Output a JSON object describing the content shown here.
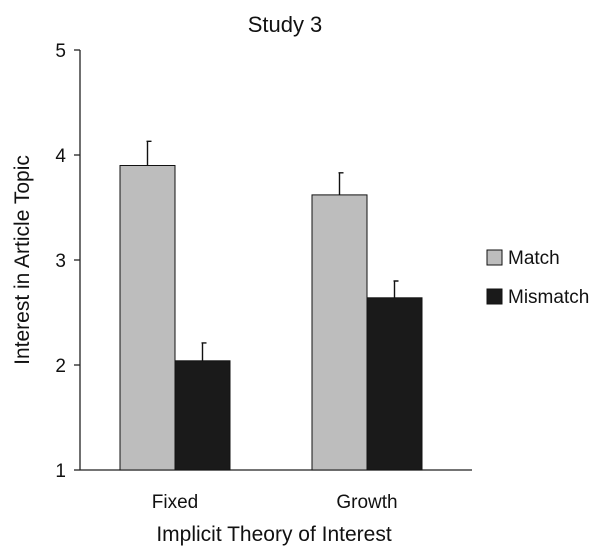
{
  "chart_data": {
    "type": "bar",
    "title": "Study 3",
    "xlabel": "Implicit Theory of Interest",
    "ylabel": "Interest in Article Topic",
    "categories": [
      "Fixed",
      "Growth"
    ],
    "series": [
      {
        "name": "Match",
        "values": [
          3.9,
          3.62
        ],
        "error": [
          0.23,
          0.21
        ],
        "color": "#bdbdbd"
      },
      {
        "name": "Mismatch",
        "values": [
          2.04,
          2.64
        ],
        "error": [
          0.17,
          0.16
        ],
        "color": "#1a1a1a"
      }
    ],
    "ylim": [
      1,
      5
    ],
    "yticks": [
      1,
      2,
      3,
      4,
      5
    ],
    "grid": false,
    "legend_position": "right"
  }
}
